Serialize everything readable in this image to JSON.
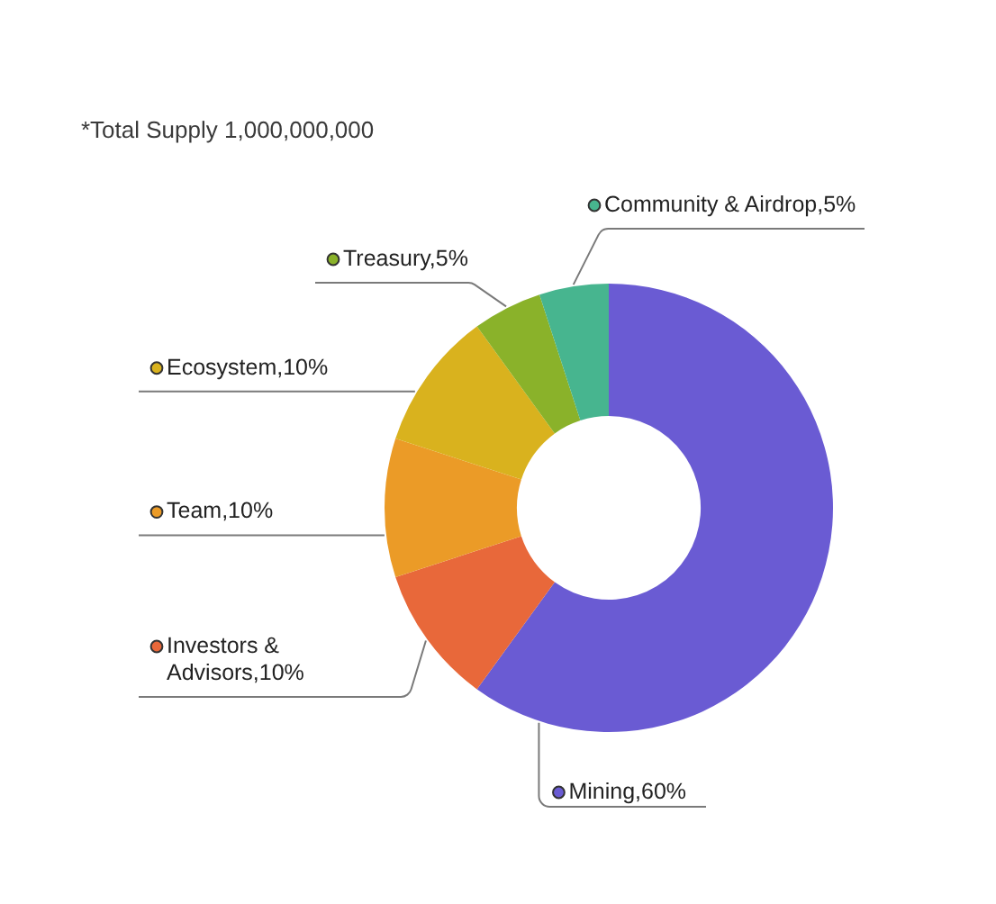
{
  "chart_data": {
    "type": "donut",
    "categories": [
      "Mining",
      "Investors & Advisors",
      "Team",
      "Ecosystem",
      "Treasury",
      "Community & Airdrop"
    ],
    "values": [
      60,
      10,
      10,
      10,
      5,
      5
    ],
    "colors": [
      "#6a5bd3",
      "#e8683a",
      "#eb9b27",
      "#d9b21e",
      "#8ab22a",
      "#47b58f"
    ],
    "value_labels": [
      "60%",
      "10%",
      "10%",
      "10%",
      "5%",
      "5%"
    ],
    "legend": "left",
    "annotations": [
      "*Total Supply 1,000,000,000"
    ]
  }
}
